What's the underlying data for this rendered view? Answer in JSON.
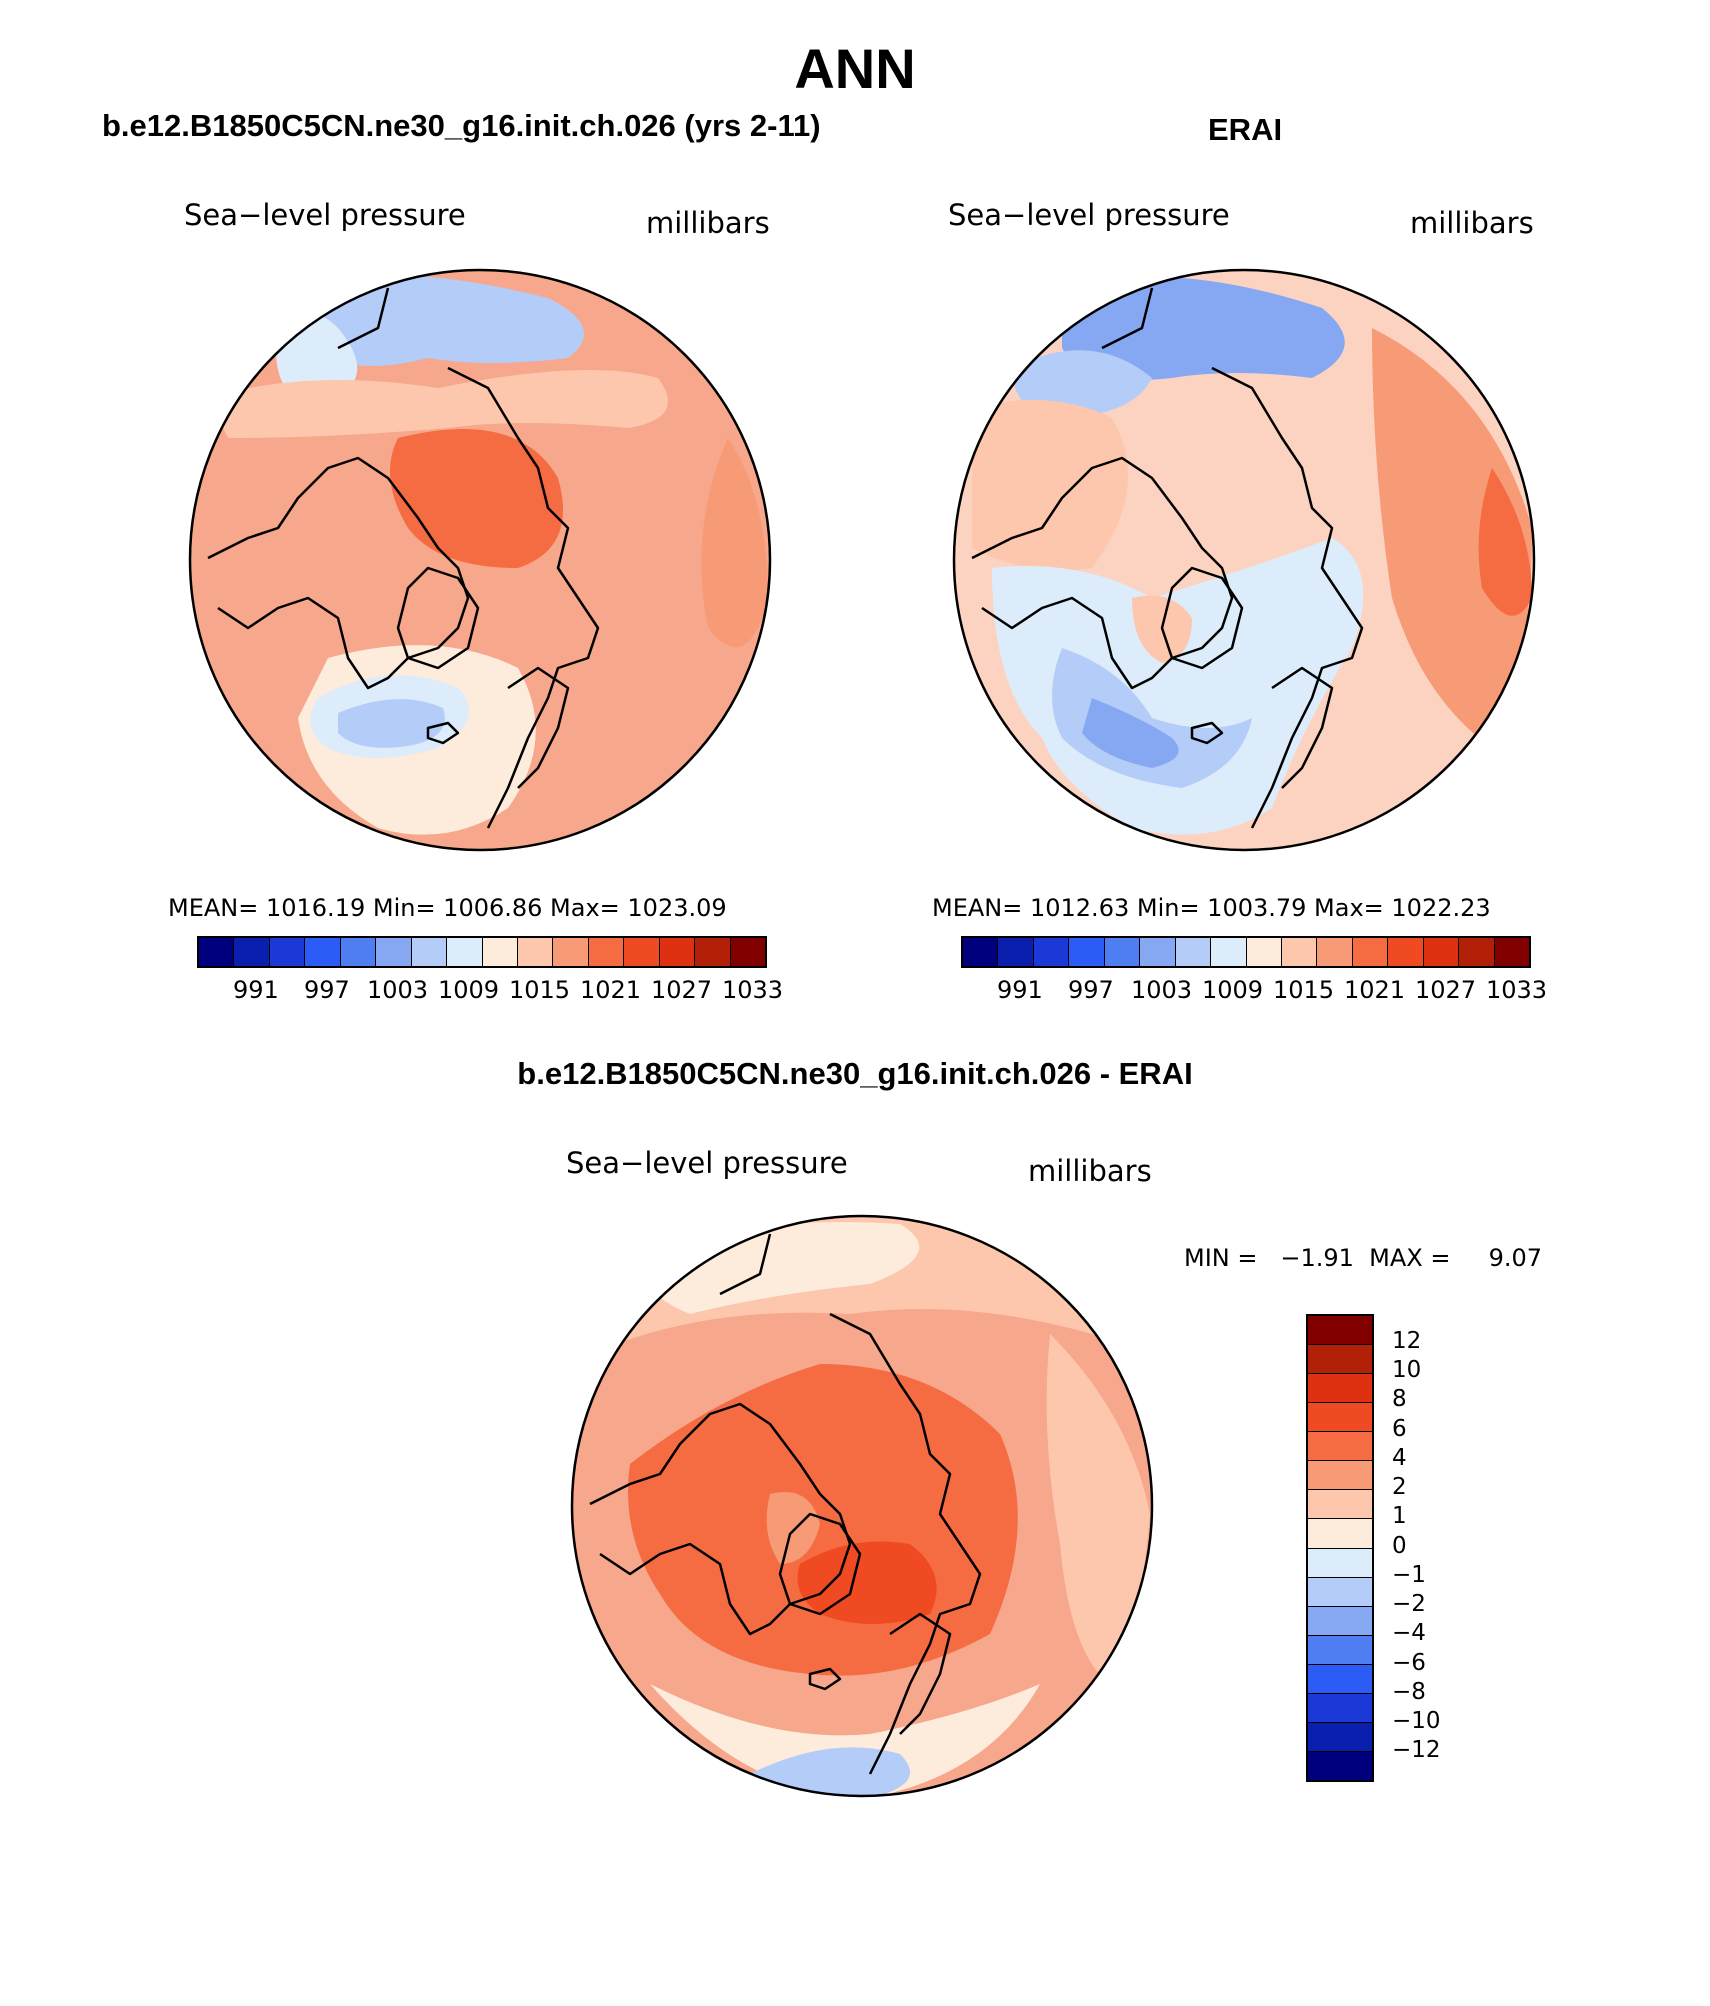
{
  "main_title": "ANN",
  "panels": [
    {
      "heading": "b.e12.B1850C5CN.ne30_g16.init.ch.026 (yrs 2-11)",
      "variable": "Sea−level pressure",
      "units": "millibars",
      "stats": "MEAN= 1016.19   Min= 1006.86   Max= 1023.09",
      "background_color": "#f7a78b"
    },
    {
      "heading": "ERAI",
      "variable": "Sea−level pressure",
      "units": "millibars",
      "stats": "MEAN= 1012.63   Min= 1003.79   Max= 1022.23",
      "background_color": "#fcd3c0"
    },
    {
      "heading": "b.e12.B1850C5CN.ne30_g16.init.ch.026 - ERAI",
      "variable": "Sea−level pressure",
      "units": "millibars",
      "stats": "MIN =   −1.91  MAX =     9.07",
      "background_color": "#f7a78b"
    }
  ],
  "abs_colorbar": {
    "colors": [
      "#00007f",
      "#0a1fae",
      "#1a39d6",
      "#2b5cf5",
      "#4f7ef2",
      "#86a8f3",
      "#b4cdf8",
      "#dcecfb",
      "#fdebdc",
      "#fcc7ad",
      "#f79a76",
      "#f56b42",
      "#f04a22",
      "#de3111",
      "#b32008",
      "#800000"
    ],
    "labels": [
      "991",
      "997",
      "1003",
      "1009",
      "1015",
      "1021",
      "1027",
      "1033"
    ]
  },
  "diff_colorbar": {
    "colors": [
      "#800000",
      "#b32008",
      "#de3111",
      "#f04a22",
      "#f56b42",
      "#f79a76",
      "#fcc7ad",
      "#fdebdc",
      "#dcecfb",
      "#b4cdf8",
      "#86a8f3",
      "#4f7ef2",
      "#2b5cf5",
      "#1a39d6",
      "#0a1fae",
      "#00007f"
    ],
    "labels": [
      "12",
      "10",
      "8",
      "6",
      "4",
      "2",
      "1",
      "0",
      "−1",
      "−2",
      "−4",
      "−6",
      "−8",
      "−10",
      "−12"
    ]
  }
}
